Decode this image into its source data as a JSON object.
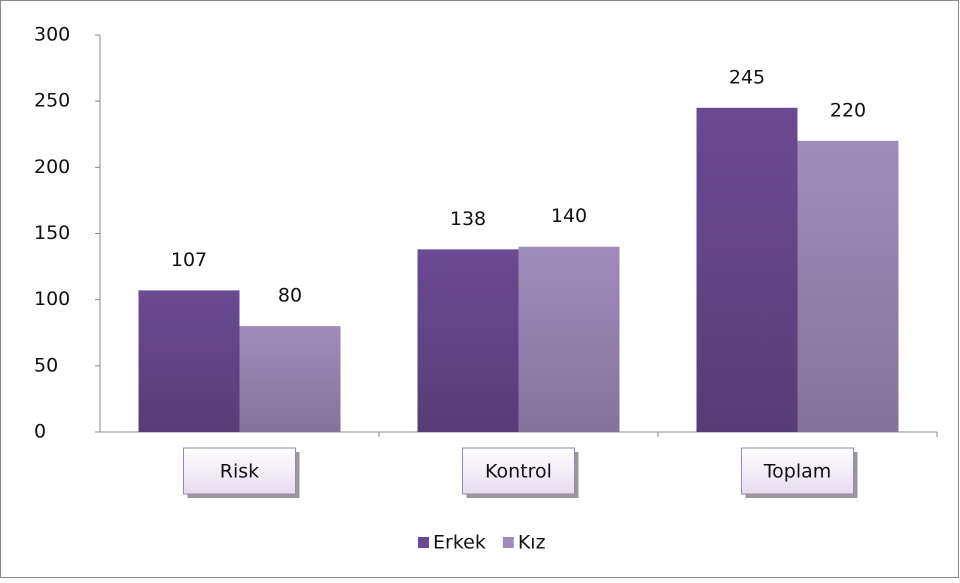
{
  "chart_data": {
    "type": "bar",
    "categories": [
      "Risk",
      "Kontrol",
      "Toplam"
    ],
    "series": [
      {
        "name": "Erkek",
        "color": "#6a4a92",
        "values": [
          107,
          138,
          245
        ]
      },
      {
        "name": "Kız",
        "color": "#a08cbb",
        "values": [
          80,
          140,
          220
        ]
      }
    ],
    "ylim": [
      0,
      300
    ],
    "yticks": [
      0,
      50,
      100,
      150,
      200,
      250,
      300
    ],
    "grid": false,
    "legend": "bottom"
  }
}
